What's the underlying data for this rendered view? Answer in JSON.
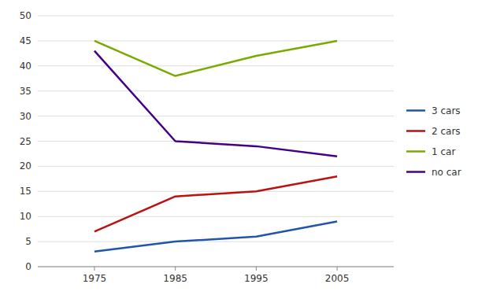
{
  "chart_data": {
    "type": "line",
    "x": [
      1975,
      1985,
      1995,
      2005
    ],
    "series": [
      {
        "name": "3 cars",
        "color": "#2255aa",
        "values": [
          3,
          5,
          6,
          9
        ]
      },
      {
        "name": "2 cars",
        "color": "#bb1111",
        "values": [
          7,
          14,
          15,
          18
        ]
      },
      {
        "name": "1 car",
        "color": "#7aaa00",
        "values": [
          45,
          38,
          42,
          45
        ]
      },
      {
        "name": "no car",
        "color": "#440088",
        "values": [
          43,
          25,
          24,
          22
        ]
      }
    ],
    "xlim": [
      1968,
      2012
    ],
    "xticks": [
      1975,
      1985,
      1995,
      2005
    ],
    "ylim": [
      0,
      50
    ],
    "yticks": [
      0,
      5,
      10,
      15,
      20,
      25,
      30,
      35,
      40,
      45,
      50
    ],
    "grid": true,
    "legend": "right"
  }
}
